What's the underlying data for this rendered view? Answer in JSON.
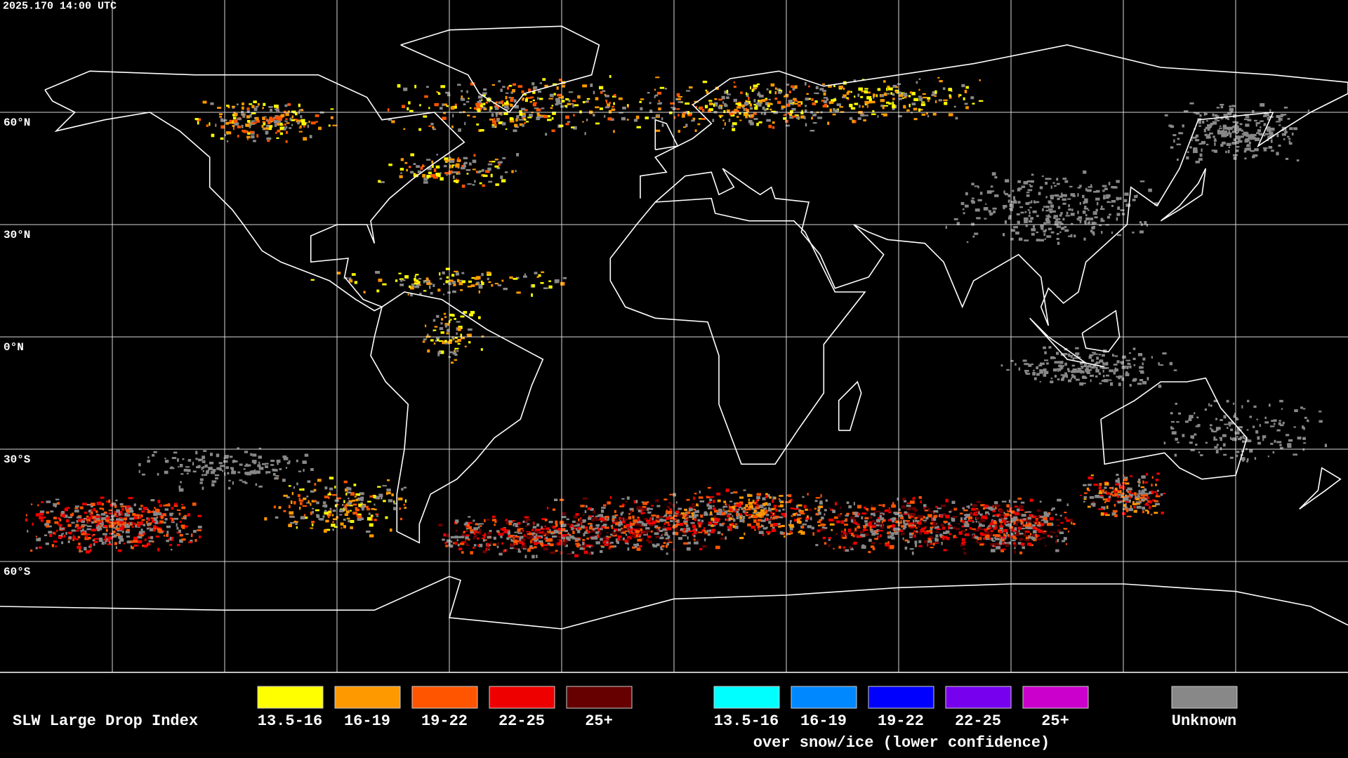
{
  "header": {
    "timestamp": "2025.170 14:00 UTC"
  },
  "map": {
    "latitude_labels": [
      "60°N",
      "30°N",
      "0°N",
      "30°S",
      "60°S"
    ]
  },
  "legend": {
    "title": "SLW Large Drop Index",
    "groups": [
      {
        "items": [
          {
            "label": "13.5-16",
            "color": "#ffff00"
          },
          {
            "label": "16-19",
            "color": "#ff9900"
          },
          {
            "label": "19-22",
            "color": "#ff5500"
          },
          {
            "label": "22-25",
            "color": "#ee0000"
          },
          {
            "label": "25+",
            "color": "#660000"
          }
        ]
      },
      {
        "items": [
          {
            "label": "13.5-16",
            "color": "#00ffff"
          },
          {
            "label": "16-19",
            "color": "#0088ff"
          },
          {
            "label": "19-22",
            "color": "#0000ff"
          },
          {
            "label": "22-25",
            "color": "#7700ee"
          },
          {
            "label": "25+",
            "color": "#cc00cc"
          }
        ],
        "caption": "over snow/ice (lower confidence)"
      }
    ],
    "unknown": {
      "label": "Unknown",
      "color": "#888888"
    }
  }
}
